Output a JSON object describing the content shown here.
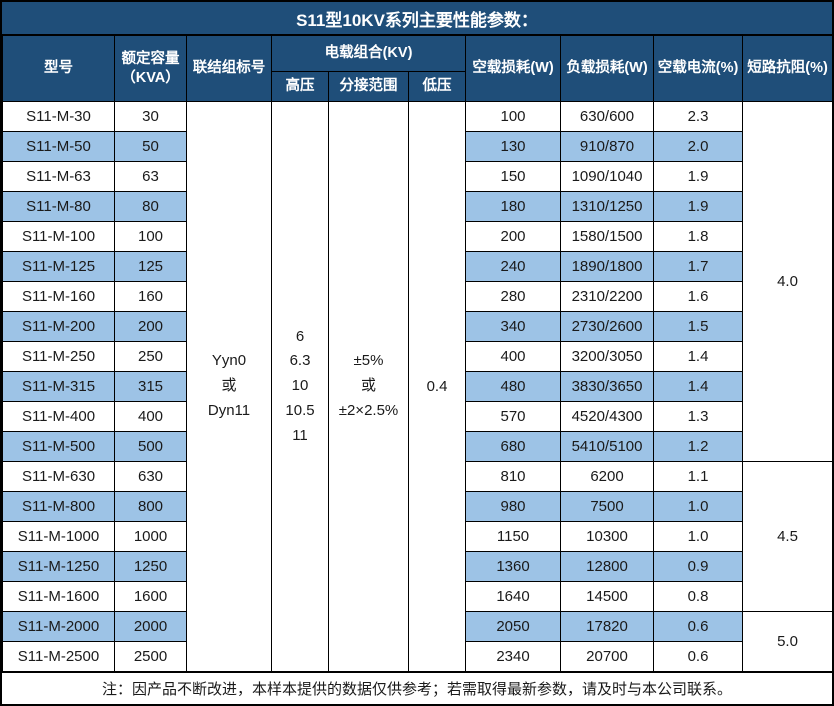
{
  "title": "S11型10KV系列主要性能参数：",
  "columns": {
    "model": "型号",
    "capacity": "额定容量\n（KVA）",
    "connection": "联结组标号",
    "combo_group": "电载组合(KV)",
    "hv": "高压",
    "tap_range": "分接范围",
    "lv": "低压",
    "no_load_loss": "空载损耗(W)",
    "load_loss": "负载损耗(W)",
    "no_load_current": "空载电流(%)",
    "impedance": "短路抗阻(%)"
  },
  "merged": {
    "connection": "Yyn0\n或\nDyn11",
    "hv": "6\n6.3\n10\n10.5\n11",
    "tap_range": "±5%\n或\n±2×2.5%",
    "lv": "0.4"
  },
  "impedance_groups": [
    {
      "value": "4.0",
      "rows": 12
    },
    {
      "value": "4.5",
      "rows": 5
    },
    {
      "value": "5.0",
      "rows": 2
    }
  ],
  "rows": [
    {
      "model": "S11-M-30",
      "capacity": "30",
      "no_load_loss": "100",
      "load_loss": "630/600",
      "no_load_current": "2.3"
    },
    {
      "model": "S11-M-50",
      "capacity": "50",
      "no_load_loss": "130",
      "load_loss": "910/870",
      "no_load_current": "2.0"
    },
    {
      "model": "S11-M-63",
      "capacity": "63",
      "no_load_loss": "150",
      "load_loss": "1090/1040",
      "no_load_current": "1.9"
    },
    {
      "model": "S11-M-80",
      "capacity": "80",
      "no_load_loss": "180",
      "load_loss": "1310/1250",
      "no_load_current": "1.9"
    },
    {
      "model": "S11-M-100",
      "capacity": "100",
      "no_load_loss": "200",
      "load_loss": "1580/1500",
      "no_load_current": "1.8"
    },
    {
      "model": "S11-M-125",
      "capacity": "125",
      "no_load_loss": "240",
      "load_loss": "1890/1800",
      "no_load_current": "1.7"
    },
    {
      "model": "S11-M-160",
      "capacity": "160",
      "no_load_loss": "280",
      "load_loss": "2310/2200",
      "no_load_current": "1.6"
    },
    {
      "model": "S11-M-200",
      "capacity": "200",
      "no_load_loss": "340",
      "load_loss": "2730/2600",
      "no_load_current": "1.5"
    },
    {
      "model": "S11-M-250",
      "capacity": "250",
      "no_load_loss": "400",
      "load_loss": "3200/3050",
      "no_load_current": "1.4"
    },
    {
      "model": "S11-M-315",
      "capacity": "315",
      "no_load_loss": "480",
      "load_loss": "3830/3650",
      "no_load_current": "1.4"
    },
    {
      "model": "S11-M-400",
      "capacity": "400",
      "no_load_loss": "570",
      "load_loss": "4520/4300",
      "no_load_current": "1.3"
    },
    {
      "model": "S11-M-500",
      "capacity": "500",
      "no_load_loss": "680",
      "load_loss": "5410/5100",
      "no_load_current": "1.2"
    },
    {
      "model": "S11-M-630",
      "capacity": "630",
      "no_load_loss": "810",
      "load_loss": "6200",
      "no_load_current": "1.1"
    },
    {
      "model": "S11-M-800",
      "capacity": "800",
      "no_load_loss": "980",
      "load_loss": "7500",
      "no_load_current": "1.0"
    },
    {
      "model": "S11-M-1000",
      "capacity": "1000",
      "no_load_loss": "1150",
      "load_loss": "10300",
      "no_load_current": "1.0"
    },
    {
      "model": "S11-M-1250",
      "capacity": "1250",
      "no_load_loss": "1360",
      "load_loss": "12800",
      "no_load_current": "0.9"
    },
    {
      "model": "S11-M-1600",
      "capacity": "1600",
      "no_load_loss": "1640",
      "load_loss": "14500",
      "no_load_current": "0.8"
    },
    {
      "model": "S11-M-2000",
      "capacity": "2000",
      "no_load_loss": "2050",
      "load_loss": "17820",
      "no_load_current": "0.6"
    },
    {
      "model": "S11-M-2500",
      "capacity": "2500",
      "no_load_loss": "2340",
      "load_loss": "20700",
      "no_load_current": "0.6"
    }
  ],
  "note": "注：因产品不断改进，本样本提供的数据仅供参考；若需取得最新参数，请及时与本公司联系。",
  "colors": {
    "header_bg": "#1F4E79",
    "band_bg": "#9DC3E6",
    "border_color": "#000000",
    "header_text": "#FFFFFF",
    "body_text": "#1A1A1A"
  }
}
